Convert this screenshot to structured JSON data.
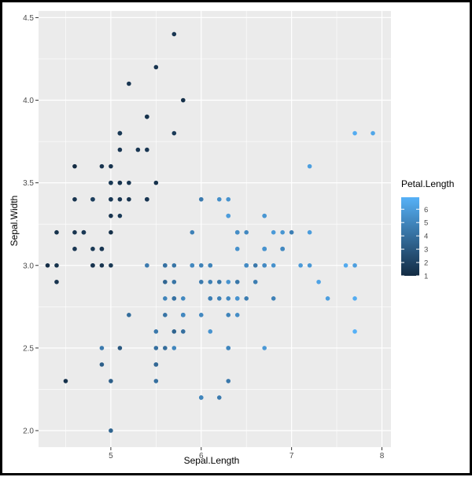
{
  "chart_data": {
    "type": "scatter",
    "xlabel": "Sepal.Length",
    "ylabel": "Sepal.Width",
    "xlim": [
      4.2,
      8.1
    ],
    "ylim": [
      1.9,
      4.54
    ],
    "x_ticks": [
      "5",
      "6",
      "7",
      "8"
    ],
    "y_ticks": [
      "2.0",
      "2.5",
      "3.0",
      "3.5",
      "4.0",
      "4.5"
    ],
    "x_tick_values": [
      5,
      6,
      7,
      8
    ],
    "y_tick_values": [
      2.0,
      2.5,
      3.0,
      3.5,
      4.0,
      4.5
    ],
    "legend": {
      "title": "Petal.Length",
      "placement": "right",
      "labels": [
        "6",
        "5",
        "4",
        "3",
        "2",
        "1"
      ],
      "values": [
        6,
        5,
        4,
        3,
        2,
        1
      ],
      "range": [
        1.0,
        6.9
      ],
      "low_color": "#132B43",
      "high_color": "#56B1F7"
    },
    "panel_background": "#EBEBEB",
    "grid": true,
    "points": [
      {
        "x": 5.1,
        "y": 3.5,
        "c": 1.4
      },
      {
        "x": 4.9,
        "y": 3.0,
        "c": 1.4
      },
      {
        "x": 4.7,
        "y": 3.2,
        "c": 1.3
      },
      {
        "x": 4.6,
        "y": 3.1,
        "c": 1.5
      },
      {
        "x": 5.0,
        "y": 3.6,
        "c": 1.4
      },
      {
        "x": 5.4,
        "y": 3.9,
        "c": 1.7
      },
      {
        "x": 4.6,
        "y": 3.4,
        "c": 1.4
      },
      {
        "x": 5.0,
        "y": 3.4,
        "c": 1.5
      },
      {
        "x": 4.4,
        "y": 2.9,
        "c": 1.4
      },
      {
        "x": 4.9,
        "y": 3.1,
        "c": 1.5
      },
      {
        "x": 5.4,
        "y": 3.7,
        "c": 1.5
      },
      {
        "x": 4.8,
        "y": 3.4,
        "c": 1.6
      },
      {
        "x": 4.8,
        "y": 3.0,
        "c": 1.4
      },
      {
        "x": 4.3,
        "y": 3.0,
        "c": 1.1
      },
      {
        "x": 5.8,
        "y": 4.0,
        "c": 1.2
      },
      {
        "x": 5.7,
        "y": 4.4,
        "c": 1.5
      },
      {
        "x": 5.4,
        "y": 3.9,
        "c": 1.3
      },
      {
        "x": 5.1,
        "y": 3.5,
        "c": 1.4
      },
      {
        "x": 5.7,
        "y": 3.8,
        "c": 1.7
      },
      {
        "x": 5.1,
        "y": 3.8,
        "c": 1.5
      },
      {
        "x": 5.4,
        "y": 3.4,
        "c": 1.7
      },
      {
        "x": 5.1,
        "y": 3.7,
        "c": 1.5
      },
      {
        "x": 4.6,
        "y": 3.6,
        "c": 1.0
      },
      {
        "x": 5.1,
        "y": 3.3,
        "c": 1.7
      },
      {
        "x": 4.8,
        "y": 3.4,
        "c": 1.9
      },
      {
        "x": 5.0,
        "y": 3.0,
        "c": 1.6
      },
      {
        "x": 5.0,
        "y": 3.4,
        "c": 1.6
      },
      {
        "x": 5.2,
        "y": 3.5,
        "c": 1.5
      },
      {
        "x": 5.2,
        "y": 3.4,
        "c": 1.4
      },
      {
        "x": 4.7,
        "y": 3.2,
        "c": 1.6
      },
      {
        "x": 4.8,
        "y": 3.1,
        "c": 1.6
      },
      {
        "x": 5.4,
        "y": 3.4,
        "c": 1.5
      },
      {
        "x": 5.2,
        "y": 4.1,
        "c": 1.5
      },
      {
        "x": 5.5,
        "y": 4.2,
        "c": 1.4
      },
      {
        "x": 4.9,
        "y": 3.1,
        "c": 1.5
      },
      {
        "x": 5.0,
        "y": 3.2,
        "c": 1.2
      },
      {
        "x": 5.5,
        "y": 3.5,
        "c": 1.3
      },
      {
        "x": 4.9,
        "y": 3.6,
        "c": 1.4
      },
      {
        "x": 4.4,
        "y": 3.0,
        "c": 1.3
      },
      {
        "x": 5.1,
        "y": 3.4,
        "c": 1.5
      },
      {
        "x": 5.0,
        "y": 3.5,
        "c": 1.3
      },
      {
        "x": 4.5,
        "y": 2.3,
        "c": 1.3
      },
      {
        "x": 4.4,
        "y": 3.2,
        "c": 1.3
      },
      {
        "x": 5.0,
        "y": 3.5,
        "c": 1.6
      },
      {
        "x": 5.1,
        "y": 3.8,
        "c": 1.9
      },
      {
        "x": 4.8,
        "y": 3.0,
        "c": 1.4
      },
      {
        "x": 5.1,
        "y": 3.8,
        "c": 1.6
      },
      {
        "x": 4.6,
        "y": 3.2,
        "c": 1.4
      },
      {
        "x": 5.3,
        "y": 3.7,
        "c": 1.5
      },
      {
        "x": 5.0,
        "y": 3.3,
        "c": 1.4
      },
      {
        "x": 7.0,
        "y": 3.2,
        "c": 4.7
      },
      {
        "x": 6.4,
        "y": 3.2,
        "c": 4.5
      },
      {
        "x": 6.9,
        "y": 3.1,
        "c": 4.9
      },
      {
        "x": 5.5,
        "y": 2.3,
        "c": 4.0
      },
      {
        "x": 6.5,
        "y": 2.8,
        "c": 4.6
      },
      {
        "x": 5.7,
        "y": 2.8,
        "c": 4.5
      },
      {
        "x": 6.3,
        "y": 3.3,
        "c": 4.7
      },
      {
        "x": 4.9,
        "y": 2.4,
        "c": 3.3
      },
      {
        "x": 6.6,
        "y": 2.9,
        "c": 4.6
      },
      {
        "x": 5.2,
        "y": 2.7,
        "c": 3.9
      },
      {
        "x": 5.0,
        "y": 2.0,
        "c": 3.5
      },
      {
        "x": 5.9,
        "y": 3.0,
        "c": 4.2
      },
      {
        "x": 6.0,
        "y": 2.2,
        "c": 4.0
      },
      {
        "x": 6.1,
        "y": 2.9,
        "c": 4.7
      },
      {
        "x": 5.6,
        "y": 2.9,
        "c": 3.6
      },
      {
        "x": 6.7,
        "y": 3.1,
        "c": 4.4
      },
      {
        "x": 5.6,
        "y": 3.0,
        "c": 4.5
      },
      {
        "x": 5.8,
        "y": 2.7,
        "c": 4.1
      },
      {
        "x": 6.2,
        "y": 2.2,
        "c": 4.5
      },
      {
        "x": 5.6,
        "y": 2.5,
        "c": 3.9
      },
      {
        "x": 5.9,
        "y": 3.2,
        "c": 4.8
      },
      {
        "x": 6.1,
        "y": 2.8,
        "c": 4.0
      },
      {
        "x": 6.3,
        "y": 2.5,
        "c": 4.9
      },
      {
        "x": 6.1,
        "y": 2.8,
        "c": 4.7
      },
      {
        "x": 6.4,
        "y": 2.9,
        "c": 4.3
      },
      {
        "x": 6.6,
        "y": 3.0,
        "c": 4.4
      },
      {
        "x": 6.8,
        "y": 2.8,
        "c": 4.8
      },
      {
        "x": 6.7,
        "y": 3.0,
        "c": 5.0
      },
      {
        "x": 6.0,
        "y": 2.9,
        "c": 4.5
      },
      {
        "x": 5.7,
        "y": 2.6,
        "c": 3.5
      },
      {
        "x": 5.5,
        "y": 2.4,
        "c": 3.8
      },
      {
        "x": 5.5,
        "y": 2.4,
        "c": 3.7
      },
      {
        "x": 5.8,
        "y": 2.7,
        "c": 3.9
      },
      {
        "x": 6.0,
        "y": 2.7,
        "c": 5.1
      },
      {
        "x": 5.4,
        "y": 3.0,
        "c": 4.5
      },
      {
        "x": 6.0,
        "y": 3.4,
        "c": 4.5
      },
      {
        "x": 6.7,
        "y": 3.1,
        "c": 4.7
      },
      {
        "x": 6.3,
        "y": 2.3,
        "c": 4.4
      },
      {
        "x": 5.6,
        "y": 3.0,
        "c": 4.1
      },
      {
        "x": 5.5,
        "y": 2.5,
        "c": 4.0
      },
      {
        "x": 5.5,
        "y": 2.6,
        "c": 4.4
      },
      {
        "x": 6.1,
        "y": 3.0,
        "c": 4.6
      },
      {
        "x": 5.8,
        "y": 2.6,
        "c": 4.0
      },
      {
        "x": 5.0,
        "y": 2.3,
        "c": 3.3
      },
      {
        "x": 5.6,
        "y": 2.7,
        "c": 4.2
      },
      {
        "x": 5.7,
        "y": 3.0,
        "c": 4.2
      },
      {
        "x": 5.7,
        "y": 2.9,
        "c": 4.2
      },
      {
        "x": 6.2,
        "y": 2.9,
        "c": 4.3
      },
      {
        "x": 5.1,
        "y": 2.5,
        "c": 3.0
      },
      {
        "x": 5.7,
        "y": 2.8,
        "c": 4.1
      },
      {
        "x": 6.3,
        "y": 3.3,
        "c": 6.0
      },
      {
        "x": 5.8,
        "y": 2.7,
        "c": 5.1
      },
      {
        "x": 7.1,
        "y": 3.0,
        "c": 5.9
      },
      {
        "x": 6.3,
        "y": 2.9,
        "c": 5.6
      },
      {
        "x": 6.5,
        "y": 3.0,
        "c": 5.8
      },
      {
        "x": 7.6,
        "y": 3.0,
        "c": 6.6
      },
      {
        "x": 4.9,
        "y": 2.5,
        "c": 4.5
      },
      {
        "x": 7.3,
        "y": 2.9,
        "c": 6.3
      },
      {
        "x": 6.7,
        "y": 2.5,
        "c": 5.8
      },
      {
        "x": 7.2,
        "y": 3.6,
        "c": 6.1
      },
      {
        "x": 6.5,
        "y": 3.2,
        "c": 5.1
      },
      {
        "x": 6.4,
        "y": 2.7,
        "c": 5.3
      },
      {
        "x": 6.8,
        "y": 3.0,
        "c": 5.5
      },
      {
        "x": 5.7,
        "y": 2.5,
        "c": 5.0
      },
      {
        "x": 5.8,
        "y": 2.8,
        "c": 5.1
      },
      {
        "x": 6.4,
        "y": 3.2,
        "c": 5.3
      },
      {
        "x": 6.5,
        "y": 3.0,
        "c": 5.5
      },
      {
        "x": 7.7,
        "y": 3.8,
        "c": 6.7
      },
      {
        "x": 7.7,
        "y": 2.6,
        "c": 6.9
      },
      {
        "x": 6.0,
        "y": 2.2,
        "c": 5.0
      },
      {
        "x": 6.9,
        "y": 3.2,
        "c": 5.7
      },
      {
        "x": 5.6,
        "y": 2.8,
        "c": 4.9
      },
      {
        "x": 7.7,
        "y": 2.8,
        "c": 6.7
      },
      {
        "x": 6.3,
        "y": 2.7,
        "c": 4.9
      },
      {
        "x": 6.7,
        "y": 3.3,
        "c": 5.7
      },
      {
        "x": 7.2,
        "y": 3.2,
        "c": 6.0
      },
      {
        "x": 6.2,
        "y": 2.8,
        "c": 4.8
      },
      {
        "x": 6.1,
        "y": 3.0,
        "c": 4.9
      },
      {
        "x": 6.4,
        "y": 2.8,
        "c": 5.6
      },
      {
        "x": 7.2,
        "y": 3.0,
        "c": 5.8
      },
      {
        "x": 7.4,
        "y": 2.8,
        "c": 6.1
      },
      {
        "x": 7.9,
        "y": 3.8,
        "c": 6.4
      },
      {
        "x": 6.4,
        "y": 2.8,
        "c": 5.6
      },
      {
        "x": 6.3,
        "y": 2.8,
        "c": 5.1
      },
      {
        "x": 6.1,
        "y": 2.6,
        "c": 5.6
      },
      {
        "x": 7.7,
        "y": 3.0,
        "c": 6.1
      },
      {
        "x": 6.3,
        "y": 3.4,
        "c": 5.6
      },
      {
        "x": 6.4,
        "y": 3.1,
        "c": 5.5
      },
      {
        "x": 6.0,
        "y": 3.0,
        "c": 4.8
      },
      {
        "x": 6.9,
        "y": 3.1,
        "c": 5.4
      },
      {
        "x": 6.7,
        "y": 3.1,
        "c": 5.6
      },
      {
        "x": 6.9,
        "y": 3.1,
        "c": 5.1
      },
      {
        "x": 5.8,
        "y": 2.7,
        "c": 5.1
      },
      {
        "x": 6.8,
        "y": 3.2,
        "c": 5.9
      },
      {
        "x": 6.7,
        "y": 3.3,
        "c": 5.7
      },
      {
        "x": 6.7,
        "y": 3.0,
        "c": 5.2
      },
      {
        "x": 6.3,
        "y": 2.5,
        "c": 5.0
      },
      {
        "x": 6.5,
        "y": 3.0,
        "c": 5.2
      },
      {
        "x": 6.2,
        "y": 3.4,
        "c": 5.4
      },
      {
        "x": 5.9,
        "y": 3.0,
        "c": 5.1
      }
    ]
  }
}
